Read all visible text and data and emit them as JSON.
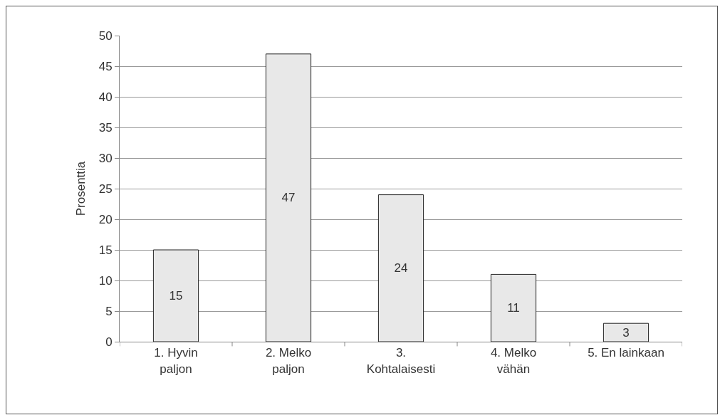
{
  "chart_data": {
    "type": "bar",
    "ylabel": "Prosenttia",
    "categories": [
      "1. Hyvin\npaljon",
      "2. Melko\npaljon",
      "3.\nKohtalaisesti",
      "4. Melko\nvähän",
      "5. En lainkaan"
    ],
    "values": [
      15,
      47,
      24,
      11,
      3
    ],
    "color": "#e8e8e8",
    "ylim": [
      0,
      50
    ],
    "yticks": [
      0,
      5,
      10,
      15,
      20,
      25,
      30,
      35,
      40,
      45,
      50
    ],
    "grid": "y",
    "data_labels": true
  }
}
